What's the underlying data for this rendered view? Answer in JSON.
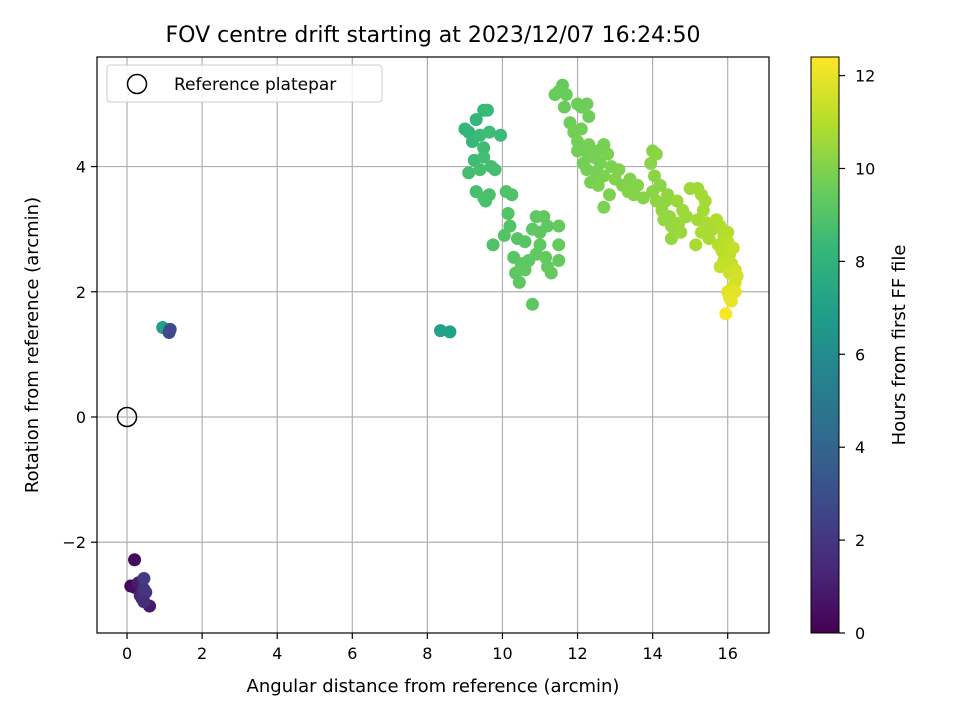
{
  "chart_data": {
    "type": "scatter",
    "title": "FOV centre drift starting at 2023/12/07 16:24:50",
    "xlabel": "Angular distance from reference (arcmin)",
    "ylabel": "Rotation from reference (arcmin)",
    "xlim": [
      -0.8,
      17.1
    ],
    "ylim": [
      -3.45,
      5.75
    ],
    "xticks": [
      0,
      2,
      4,
      6,
      8,
      10,
      12,
      14,
      16
    ],
    "yticks": [
      -2,
      0,
      2,
      4
    ],
    "xtick_labels": [
      "0",
      "2",
      "4",
      "6",
      "8",
      "10",
      "12",
      "14",
      "16"
    ],
    "ytick_labels": [
      "−2",
      "0",
      "2",
      "4"
    ],
    "grid": true,
    "legend": {
      "placement": "top-left",
      "label": "Reference platepar"
    },
    "reference_point": {
      "x": 0,
      "y": 0
    },
    "colorbar": {
      "label": "Hours from first FF file",
      "range": [
        0,
        12.4
      ],
      "ticks": [
        0,
        2,
        4,
        6,
        8,
        10,
        12
      ],
      "tick_labels": [
        "0",
        "2",
        "4",
        "6",
        "8",
        "10",
        "12"
      ],
      "colormap": "viridis"
    },
    "points": [
      {
        "x": 0.1,
        "y": -2.7,
        "h": 0.2
      },
      {
        "x": 0.2,
        "y": -2.28,
        "h": 0.3
      },
      {
        "x": 0.2,
        "y": -2.72,
        "h": 0.5
      },
      {
        "x": 0.3,
        "y": -2.65,
        "h": 1.0
      },
      {
        "x": 0.35,
        "y": -2.85,
        "h": 1.3
      },
      {
        "x": 0.4,
        "y": -2.9,
        "h": 1.5
      },
      {
        "x": 0.45,
        "y": -2.75,
        "h": 1.8
      },
      {
        "x": 0.45,
        "y": -2.58,
        "h": 2.2
      },
      {
        "x": 0.5,
        "y": -2.8,
        "h": 1.9
      },
      {
        "x": 0.6,
        "y": -3.02,
        "h": 0.9
      },
      {
        "x": 0.45,
        "y": -2.95,
        "h": 1.6
      },
      {
        "x": 0.95,
        "y": 1.43,
        "h": 7.0
      },
      {
        "x": 1.15,
        "y": 1.4,
        "h": 3.0
      },
      {
        "x": 1.12,
        "y": 1.35,
        "h": 2.8
      },
      {
        "x": 8.35,
        "y": 1.38,
        "h": 7.1
      },
      {
        "x": 8.6,
        "y": 1.36,
        "h": 7.1
      },
      {
        "x": 9.0,
        "y": 4.6,
        "h": 8.2
      },
      {
        "x": 9.1,
        "y": 4.55,
        "h": 8.1
      },
      {
        "x": 9.2,
        "y": 4.4,
        "h": 8.3
      },
      {
        "x": 9.3,
        "y": 4.75,
        "h": 8.2
      },
      {
        "x": 9.5,
        "y": 4.9,
        "h": 8.3
      },
      {
        "x": 9.6,
        "y": 4.9,
        "h": 8.4
      },
      {
        "x": 9.4,
        "y": 4.5,
        "h": 8.4
      },
      {
        "x": 9.5,
        "y": 4.3,
        "h": 8.5
      },
      {
        "x": 9.65,
        "y": 4.55,
        "h": 8.5
      },
      {
        "x": 9.25,
        "y": 4.1,
        "h": 8.5
      },
      {
        "x": 9.5,
        "y": 4.15,
        "h": 8.6
      },
      {
        "x": 9.7,
        "y": 4.0,
        "h": 8.6
      },
      {
        "x": 9.1,
        "y": 3.9,
        "h": 8.6
      },
      {
        "x": 9.4,
        "y": 3.95,
        "h": 8.7
      },
      {
        "x": 9.8,
        "y": 3.95,
        "h": 8.7
      },
      {
        "x": 9.95,
        "y": 4.5,
        "h": 8.4
      },
      {
        "x": 9.3,
        "y": 3.6,
        "h": 8.7
      },
      {
        "x": 9.55,
        "y": 3.45,
        "h": 8.8
      },
      {
        "x": 9.65,
        "y": 3.55,
        "h": 8.8
      },
      {
        "x": 9.5,
        "y": 3.5,
        "h": 8.8
      },
      {
        "x": 10.1,
        "y": 3.6,
        "h": 8.9
      },
      {
        "x": 10.25,
        "y": 3.55,
        "h": 8.9
      },
      {
        "x": 10.15,
        "y": 3.25,
        "h": 9.0
      },
      {
        "x": 10.2,
        "y": 3.05,
        "h": 9.0
      },
      {
        "x": 10.05,
        "y": 2.9,
        "h": 9.0
      },
      {
        "x": 9.75,
        "y": 2.75,
        "h": 8.9
      },
      {
        "x": 10.4,
        "y": 2.85,
        "h": 9.1
      },
      {
        "x": 10.6,
        "y": 2.8,
        "h": 9.1
      },
      {
        "x": 10.3,
        "y": 2.55,
        "h": 9.1
      },
      {
        "x": 10.5,
        "y": 2.45,
        "h": 9.2
      },
      {
        "x": 10.35,
        "y": 2.3,
        "h": 9.2
      },
      {
        "x": 10.45,
        "y": 2.15,
        "h": 9.2
      },
      {
        "x": 10.7,
        "y": 2.5,
        "h": 9.2
      },
      {
        "x": 10.6,
        "y": 2.35,
        "h": 9.3
      },
      {
        "x": 10.8,
        "y": 3.0,
        "h": 9.2
      },
      {
        "x": 10.9,
        "y": 3.2,
        "h": 9.2
      },
      {
        "x": 11.1,
        "y": 3.2,
        "h": 9.3
      },
      {
        "x": 11.0,
        "y": 2.95,
        "h": 9.3
      },
      {
        "x": 11.2,
        "y": 3.05,
        "h": 9.3
      },
      {
        "x": 11.0,
        "y": 2.75,
        "h": 9.3
      },
      {
        "x": 10.9,
        "y": 2.6,
        "h": 9.3
      },
      {
        "x": 11.15,
        "y": 2.55,
        "h": 9.4
      },
      {
        "x": 11.3,
        "y": 2.3,
        "h": 9.4
      },
      {
        "x": 11.5,
        "y": 2.5,
        "h": 9.4
      },
      {
        "x": 11.5,
        "y": 2.75,
        "h": 9.4
      },
      {
        "x": 11.5,
        "y": 3.05,
        "h": 9.4
      },
      {
        "x": 10.8,
        "y": 1.8,
        "h": 9.2
      },
      {
        "x": 11.2,
        "y": 2.4,
        "h": 9.4
      },
      {
        "x": 11.6,
        "y": 5.3,
        "h": 9.4
      },
      {
        "x": 11.4,
        "y": 5.15,
        "h": 9.5
      },
      {
        "x": 11.5,
        "y": 5.2,
        "h": 9.5
      },
      {
        "x": 11.7,
        "y": 5.15,
        "h": 9.5
      },
      {
        "x": 11.65,
        "y": 4.95,
        "h": 9.5
      },
      {
        "x": 12.0,
        "y": 5.0,
        "h": 9.6
      },
      {
        "x": 12.1,
        "y": 4.95,
        "h": 9.6
      },
      {
        "x": 12.25,
        "y": 5.0,
        "h": 9.6
      },
      {
        "x": 12.3,
        "y": 4.8,
        "h": 9.6
      },
      {
        "x": 11.8,
        "y": 4.7,
        "h": 9.6
      },
      {
        "x": 11.9,
        "y": 4.55,
        "h": 9.7
      },
      {
        "x": 12.0,
        "y": 4.4,
        "h": 9.7
      },
      {
        "x": 12.1,
        "y": 4.6,
        "h": 9.7
      },
      {
        "x": 12.2,
        "y": 4.25,
        "h": 9.7
      },
      {
        "x": 12.0,
        "y": 4.25,
        "h": 9.7
      },
      {
        "x": 12.15,
        "y": 4.05,
        "h": 9.7
      },
      {
        "x": 12.3,
        "y": 4.35,
        "h": 9.8
      },
      {
        "x": 12.4,
        "y": 4.15,
        "h": 9.8
      },
      {
        "x": 12.25,
        "y": 3.95,
        "h": 9.8
      },
      {
        "x": 12.35,
        "y": 3.75,
        "h": 9.8
      },
      {
        "x": 12.5,
        "y": 3.9,
        "h": 9.8
      },
      {
        "x": 12.6,
        "y": 4.05,
        "h": 9.8
      },
      {
        "x": 12.7,
        "y": 4.35,
        "h": 9.8
      },
      {
        "x": 12.55,
        "y": 4.25,
        "h": 9.8
      },
      {
        "x": 12.8,
        "y": 4.2,
        "h": 9.9
      },
      {
        "x": 12.9,
        "y": 4.0,
        "h": 9.9
      },
      {
        "x": 12.7,
        "y": 3.85,
        "h": 9.9
      },
      {
        "x": 12.55,
        "y": 3.7,
        "h": 9.9
      },
      {
        "x": 12.85,
        "y": 3.55,
        "h": 9.9
      },
      {
        "x": 12.7,
        "y": 3.35,
        "h": 9.9
      },
      {
        "x": 13.0,
        "y": 3.8,
        "h": 10.0
      },
      {
        "x": 13.1,
        "y": 3.95,
        "h": 10.0
      },
      {
        "x": 13.2,
        "y": 3.7,
        "h": 10.0
      },
      {
        "x": 13.4,
        "y": 3.8,
        "h": 10.0
      },
      {
        "x": 13.5,
        "y": 3.55,
        "h": 10.1
      },
      {
        "x": 13.35,
        "y": 3.6,
        "h": 10.1
      },
      {
        "x": 13.6,
        "y": 3.7,
        "h": 10.1
      },
      {
        "x": 13.75,
        "y": 3.5,
        "h": 10.1
      },
      {
        "x": 14.0,
        "y": 4.25,
        "h": 10.1
      },
      {
        "x": 14.1,
        "y": 4.2,
        "h": 10.2
      },
      {
        "x": 13.95,
        "y": 4.05,
        "h": 10.2
      },
      {
        "x": 14.05,
        "y": 3.85,
        "h": 10.2
      },
      {
        "x": 14.2,
        "y": 3.7,
        "h": 10.2
      },
      {
        "x": 14.0,
        "y": 3.6,
        "h": 10.2
      },
      {
        "x": 14.1,
        "y": 3.45,
        "h": 10.3
      },
      {
        "x": 14.25,
        "y": 3.3,
        "h": 10.3
      },
      {
        "x": 14.35,
        "y": 3.45,
        "h": 10.3
      },
      {
        "x": 14.4,
        "y": 3.55,
        "h": 10.3
      },
      {
        "x": 14.45,
        "y": 3.2,
        "h": 10.4
      },
      {
        "x": 14.5,
        "y": 3.05,
        "h": 10.4
      },
      {
        "x": 14.3,
        "y": 3.15,
        "h": 10.4
      },
      {
        "x": 14.6,
        "y": 2.95,
        "h": 10.4
      },
      {
        "x": 14.5,
        "y": 2.85,
        "h": 10.4
      },
      {
        "x": 14.7,
        "y": 3.1,
        "h": 10.5
      },
      {
        "x": 14.8,
        "y": 3.3,
        "h": 10.5
      },
      {
        "x": 14.65,
        "y": 3.45,
        "h": 10.5
      },
      {
        "x": 14.9,
        "y": 3.2,
        "h": 10.5
      },
      {
        "x": 14.75,
        "y": 2.95,
        "h": 10.5
      },
      {
        "x": 15.0,
        "y": 3.65,
        "h": 10.6
      },
      {
        "x": 15.2,
        "y": 3.65,
        "h": 10.6
      },
      {
        "x": 15.3,
        "y": 3.55,
        "h": 10.7
      },
      {
        "x": 15.4,
        "y": 3.45,
        "h": 10.7
      },
      {
        "x": 15.35,
        "y": 3.3,
        "h": 10.7
      },
      {
        "x": 15.2,
        "y": 3.15,
        "h": 10.7
      },
      {
        "x": 15.45,
        "y": 3.1,
        "h": 10.8
      },
      {
        "x": 15.3,
        "y": 2.95,
        "h": 10.8
      },
      {
        "x": 15.5,
        "y": 2.85,
        "h": 10.8
      },
      {
        "x": 15.6,
        "y": 3.0,
        "h": 10.8
      },
      {
        "x": 15.7,
        "y": 3.15,
        "h": 10.9
      },
      {
        "x": 15.15,
        "y": 2.75,
        "h": 10.8
      },
      {
        "x": 15.8,
        "y": 3.05,
        "h": 10.9
      },
      {
        "x": 15.9,
        "y": 2.9,
        "h": 11.0
      },
      {
        "x": 16.0,
        "y": 2.95,
        "h": 11.0
      },
      {
        "x": 15.75,
        "y": 2.75,
        "h": 11.0
      },
      {
        "x": 15.85,
        "y": 2.65,
        "h": 11.1
      },
      {
        "x": 16.0,
        "y": 2.8,
        "h": 11.1
      },
      {
        "x": 16.05,
        "y": 2.6,
        "h": 11.2
      },
      {
        "x": 15.9,
        "y": 2.5,
        "h": 11.2
      },
      {
        "x": 16.1,
        "y": 2.45,
        "h": 11.3
      },
      {
        "x": 15.8,
        "y": 2.4,
        "h": 11.3
      },
      {
        "x": 16.15,
        "y": 2.7,
        "h": 11.3
      },
      {
        "x": 16.2,
        "y": 2.35,
        "h": 11.5
      },
      {
        "x": 16.05,
        "y": 2.3,
        "h": 11.5
      },
      {
        "x": 16.2,
        "y": 2.15,
        "h": 11.6
      },
      {
        "x": 16.1,
        "y": 2.05,
        "h": 11.7
      },
      {
        "x": 16.0,
        "y": 2.0,
        "h": 11.8
      },
      {
        "x": 16.2,
        "y": 2.0,
        "h": 11.9
      },
      {
        "x": 16.1,
        "y": 1.85,
        "h": 12.0
      },
      {
        "x": 16.05,
        "y": 1.9,
        "h": 12.0
      },
      {
        "x": 15.95,
        "y": 1.65,
        "h": 12.3
      },
      {
        "x": 16.25,
        "y": 2.25,
        "h": 11.6
      }
    ]
  }
}
